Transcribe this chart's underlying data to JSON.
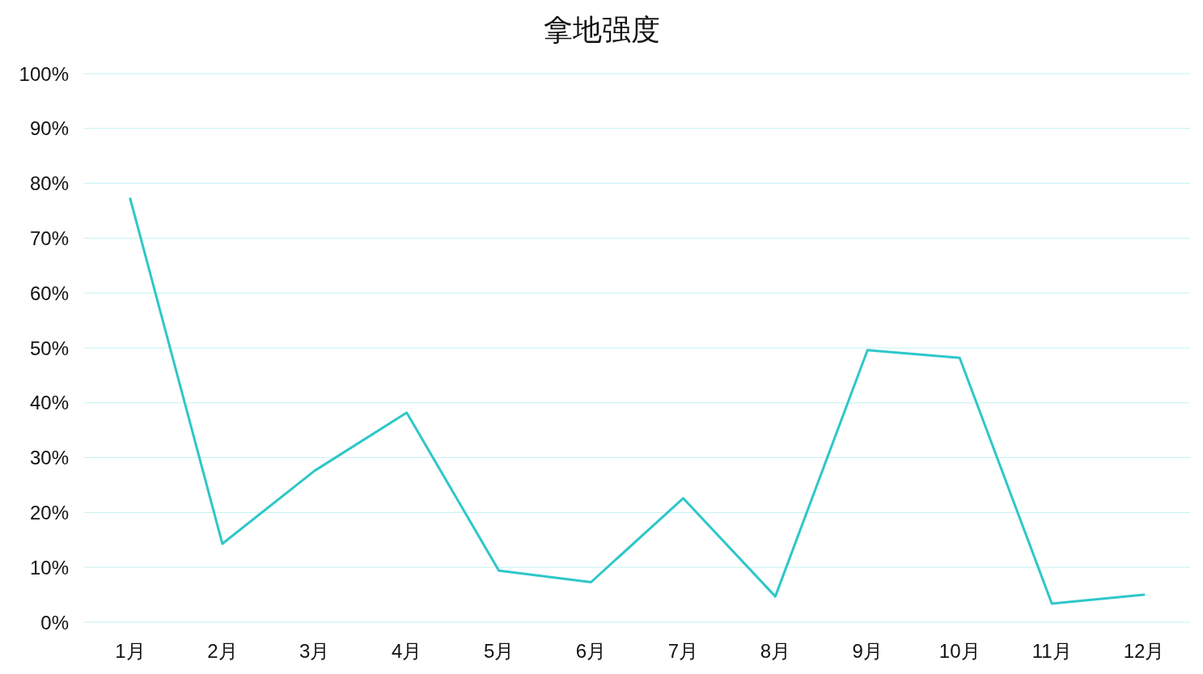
{
  "chart_data": {
    "type": "line",
    "title": "拿地强度",
    "categories": [
      "1月",
      "2月",
      "3月",
      "4月",
      "5月",
      "6月",
      "7月",
      "8月",
      "9月",
      "10月",
      "11月",
      "12月"
    ],
    "series": [
      {
        "color": "#2ec7c9",
        "values": [
          77.2,
          14.3,
          27.6,
          38.2,
          9.4,
          7.3,
          22.6,
          4.7,
          49.6,
          48.2,
          3.4,
          5.0
        ]
      }
    ],
    "ylim": [
      0,
      100
    ],
    "yticks": [
      {
        "value": 0,
        "label": "0%"
      },
      {
        "value": 10,
        "label": "10%"
      },
      {
        "value": 20,
        "label": "20%"
      },
      {
        "value": 30,
        "label": "30%"
      },
      {
        "value": 40,
        "label": "40%"
      },
      {
        "value": 50,
        "label": "50%"
      },
      {
        "value": 60,
        "label": "60%"
      },
      {
        "value": 70,
        "label": "70%"
      },
      {
        "value": 80,
        "label": "80%"
      },
      {
        "value": 90,
        "label": "90%"
      },
      {
        "value": 100,
        "label": "100%"
      }
    ],
    "grid": "y"
  }
}
